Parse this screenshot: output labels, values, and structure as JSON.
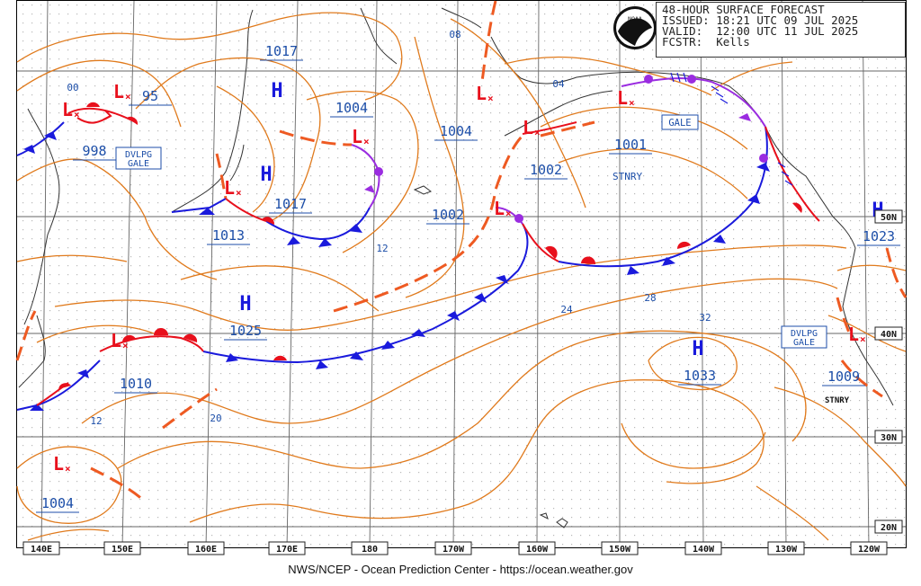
{
  "header": {
    "title": "48-HOUR SURFACE FORECAST",
    "issued": "ISSUED: 18:21 UTC 09 JUL 2025",
    "valid": "VALID:  12:00 UTC 11 JUL 2025",
    "forecaster": "FCSTR:  Kells"
  },
  "logo_text": "NOAA",
  "footer": "NWS/NCEP - Ocean Prediction Center - https://ocean.weather.gov",
  "longitude_labels": [
    "140E",
    "150E",
    "160E",
    "170E",
    "180",
    "170W",
    "160W",
    "150W",
    "140W",
    "130W",
    "120W"
  ],
  "latitude_labels": [
    "50N",
    "40N",
    "30N",
    "20N"
  ],
  "pressure_centers": [
    {
      "type": "L",
      "value": "998"
    },
    {
      "type": "L",
      "value": "95"
    },
    {
      "type": "H",
      "value": "1017"
    },
    {
      "type": "H",
      "value": "1017"
    },
    {
      "type": "L",
      "value": "1013"
    },
    {
      "type": "L",
      "value": "1004"
    },
    {
      "type": "L",
      "value": "1004"
    },
    {
      "type": "L",
      "value": "1002"
    },
    {
      "type": "L",
      "value": "1002"
    },
    {
      "type": "L",
      "value": "1001"
    },
    {
      "type": "H",
      "value": "1023"
    },
    {
      "type": "H",
      "value": "1025"
    },
    {
      "type": "L",
      "value": "1010"
    },
    {
      "type": "H",
      "value": "1033"
    },
    {
      "type": "L",
      "value": "1009"
    },
    {
      "type": "L",
      "value": "1004"
    }
  ],
  "warning_boxes": [
    "DVLPG\nGALE",
    "GALE",
    "DVLPG\nGALE"
  ],
  "isobar_labels": [
    "00",
    "08",
    "04",
    "12",
    "24",
    "28",
    "32",
    "20",
    "12"
  ],
  "annotations": [
    "STNRY",
    "STNRY"
  ],
  "colors": {
    "isobar": "#e07a1c",
    "trough": "#ee5a22",
    "warm_front": "#e8101c",
    "cold_front": "#1a1adc",
    "occluded": "#9a2ce0",
    "label": "#1c4ea8",
    "grid": "#555555"
  }
}
